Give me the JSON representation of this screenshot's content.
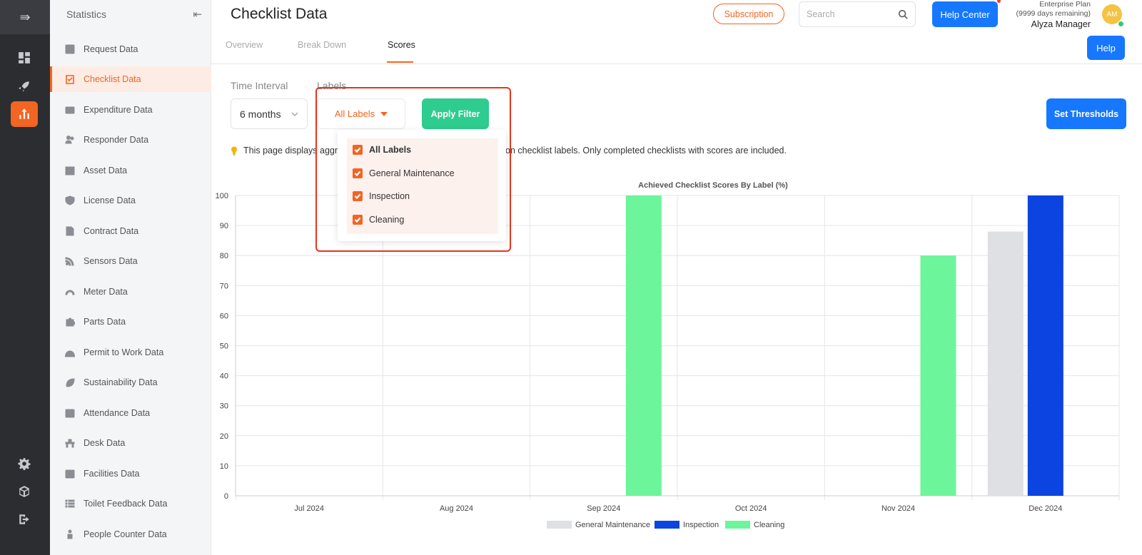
{
  "sidebar": {
    "title": "Statistics",
    "items": [
      {
        "label": "Request Data",
        "icon": "question-icon"
      },
      {
        "label": "Checklist Data",
        "icon": "checklist-icon",
        "active": true
      },
      {
        "label": "Expenditure Data",
        "icon": "wallet-icon"
      },
      {
        "label": "Responder Data",
        "icon": "users-icon"
      },
      {
        "label": "Asset Data",
        "icon": "box-icon"
      },
      {
        "label": "License Data",
        "icon": "shield-icon"
      },
      {
        "label": "Contract Data",
        "icon": "contract-icon"
      },
      {
        "label": "Sensors Data",
        "icon": "rss-icon"
      },
      {
        "label": "Meter Data",
        "icon": "gauge-icon"
      },
      {
        "label": "Parts Data",
        "icon": "puzzle-icon"
      },
      {
        "label": "Permit to Work Data",
        "icon": "helmet-icon"
      },
      {
        "label": "Sustainability Data",
        "icon": "leaf-icon"
      },
      {
        "label": "Attendance Data",
        "icon": "calendar-check-icon"
      },
      {
        "label": "Desk Data",
        "icon": "desk-icon"
      },
      {
        "label": "Facilities Data",
        "icon": "calendar-plus-icon"
      },
      {
        "label": "Toilet Feedback Data",
        "icon": "list-icon"
      },
      {
        "label": "People Counter Data",
        "icon": "person-icon"
      }
    ]
  },
  "header": {
    "title": "Checklist Data",
    "subscription_label": "Subscription",
    "search_placeholder": "Search",
    "help_center_label": "Help Center",
    "plan_name": "Enterprise Plan",
    "plan_remaining": "(9999 days remaining)",
    "user_name": "Alyza Manager",
    "avatar_initials": "AM"
  },
  "tabs": [
    {
      "label": "Overview"
    },
    {
      "label": "Break Down"
    },
    {
      "label": "Scores",
      "active": true
    }
  ],
  "help_label": "Help",
  "filters": {
    "time_interval_label": "Time Interval",
    "time_interval_value": "6 months",
    "labels_label": "Labels",
    "labels_value": "All Labels",
    "apply_label": "Apply Filter",
    "set_thresholds_label": "Set Thresholds"
  },
  "dropdown": {
    "options": [
      {
        "label": "All Labels",
        "checked": true
      },
      {
        "label": "General Maintenance",
        "checked": true
      },
      {
        "label": "Inspection",
        "checked": true
      },
      {
        "label": "Cleaning",
        "checked": true
      }
    ]
  },
  "info_text_start": "This page displays aggr",
  "info_text_end": "on checklist labels. Only completed checklists with scores are included.",
  "chart_data": {
    "type": "bar",
    "title": "Achieved Checklist Scores By Label (%)",
    "categories": [
      "Jul 2024",
      "Aug 2024",
      "Sep 2024",
      "Oct 2024",
      "Nov 2024",
      "Dec 2024"
    ],
    "series": [
      {
        "name": "General Maintenance",
        "color": "#dfe0e4",
        "values": [
          0,
          0,
          0,
          0,
          0,
          88
        ]
      },
      {
        "name": "Inspection",
        "color": "#0b44e0",
        "values": [
          0,
          0,
          0,
          0,
          0,
          100
        ]
      },
      {
        "name": "Cleaning",
        "color": "#6cf59b",
        "values": [
          0,
          0,
          100,
          0,
          80,
          0
        ]
      }
    ],
    "ylim": [
      0,
      100
    ],
    "yticks": [
      0,
      10,
      20,
      30,
      40,
      50,
      60,
      70,
      80,
      90,
      100
    ],
    "grid": true,
    "legend_position": "bottom"
  }
}
